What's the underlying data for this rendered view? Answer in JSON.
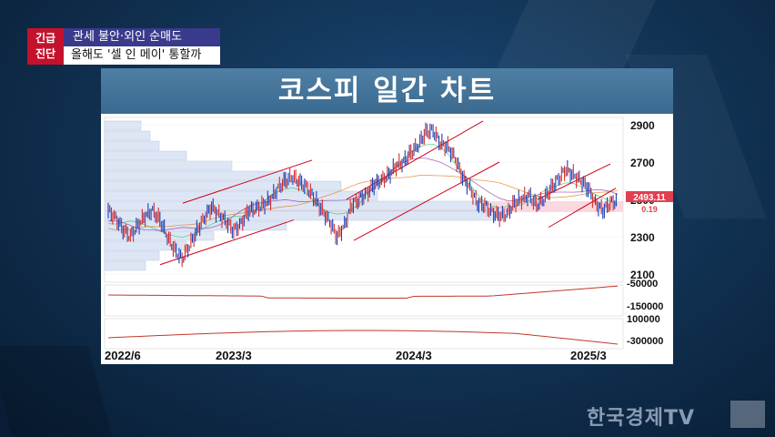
{
  "badge": {
    "line1": "긴급",
    "line2": "진단"
  },
  "caption": {
    "line1": "관세 불안·외인 순매도",
    "line2": "올해도 '셀 인 메이' 통할까"
  },
  "chart_title": "코스피 일간 차트",
  "current_price": {
    "value": "2493.11",
    "change": "0.19"
  },
  "chart_data": {
    "type": "line",
    "title": "코스피 일간 차트",
    "y_ticks": [
      "2900",
      "2700",
      "2500",
      "2300",
      "2100"
    ],
    "ylim": [
      2100,
      2900
    ],
    "x_ticks": [
      "2022/6",
      "2023/3",
      "2024/3",
      "2025/3"
    ],
    "lower_y_ticks": [
      "-50000",
      "-150000",
      "100000",
      "-300000"
    ],
    "series": [
      {
        "values": [
          2440,
          2400,
          2340,
          2300,
          2360,
          2410,
          2440,
          2390,
          2300,
          2230,
          2180,
          2250,
          2330,
          2400,
          2460,
          2420,
          2380,
          2330,
          2370,
          2440,
          2450,
          2470,
          2500,
          2560,
          2600,
          2620,
          2590,
          2560,
          2500,
          2440,
          2380,
          2300,
          2360,
          2470,
          2500,
          2530,
          2580,
          2600,
          2630,
          2680,
          2700,
          2750,
          2790,
          2860,
          2870,
          2800,
          2780,
          2720,
          2620,
          2560,
          2480,
          2470,
          2430,
          2410,
          2420,
          2480,
          2500,
          2520,
          2470,
          2500,
          2560,
          2610,
          2660,
          2630,
          2600,
          2560,
          2480,
          2440,
          2480,
          2493
        ]
      }
    ],
    "x_range": [
      "2022/6",
      "2025/4"
    ]
  },
  "watermark": {
    "text": "한국경제TV"
  },
  "colors": {
    "badge": "#c4122c",
    "caption_bg": "#3a3a8c",
    "title_bar": "#4373a0",
    "price_tag": "#e04050"
  }
}
